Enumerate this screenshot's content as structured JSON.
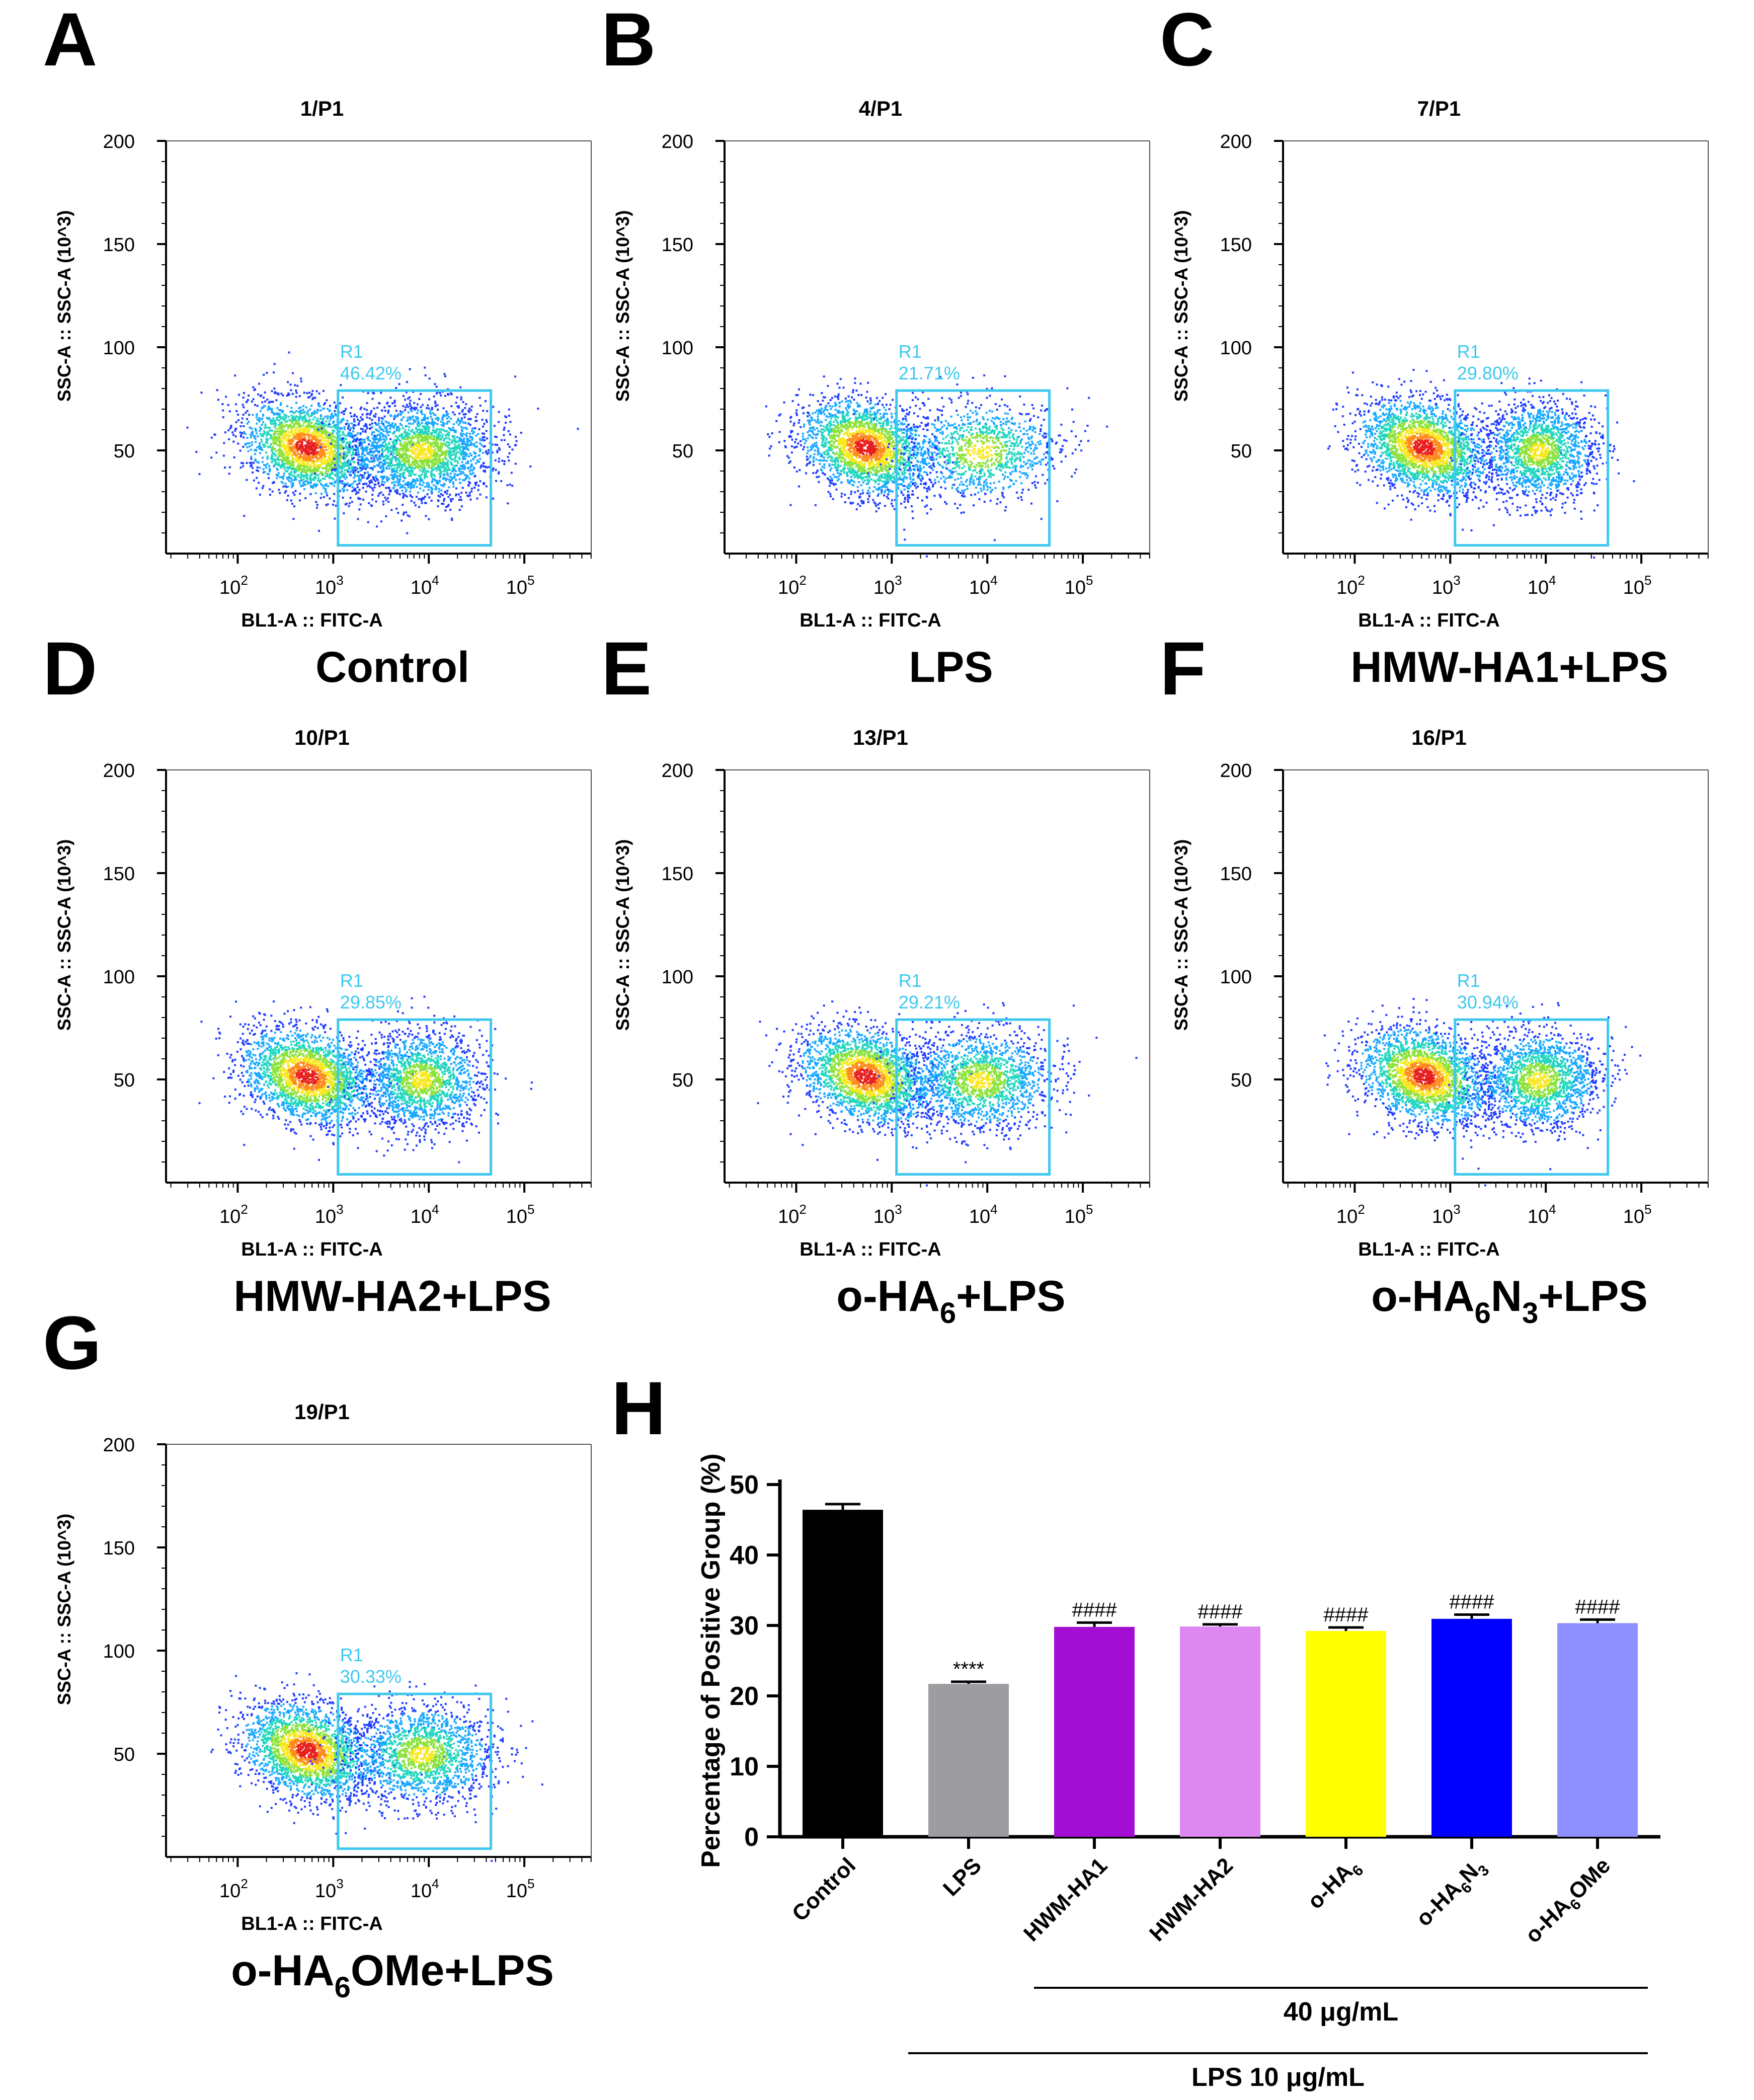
{
  "figure": {
    "panels": [
      {
        "letter": "A",
        "title": "1/P1",
        "group": "Control",
        "gate": "R1",
        "percent": "46.42%",
        "right_rel": 0.55,
        "right_spread": 0.95
      },
      {
        "letter": "B",
        "title": "4/P1",
        "group": "LPS",
        "gate": "R1",
        "percent": "21.71%",
        "right_rel": 0.28,
        "right_spread": 1.0
      },
      {
        "letter": "C",
        "title": "7/P1",
        "group": "HMW-HA1+LPS",
        "gate": "R1",
        "percent": "29.80%",
        "right_rel": 0.42,
        "right_spread": 0.75
      },
      {
        "letter": "D",
        "title": "10/P1",
        "group": "HMW-HA2+LPS",
        "gate": "R1",
        "percent": "29.85%",
        "right_rel": 0.42,
        "right_spread": 0.8
      },
      {
        "letter": "E",
        "title": "13/P1",
        "group": "o-HA6+LPS",
        "group_parts": [
          "o-HA",
          "6",
          "+LPS"
        ],
        "gate": "R1",
        "percent": "29.21%",
        "right_rel": 0.42,
        "right_spread": 0.95
      },
      {
        "letter": "F",
        "title": "16/P1",
        "group": "o-HA6N3+LPS",
        "group_parts": [
          "o-HA",
          "6",
          "N",
          "3",
          "+LPS"
        ],
        "gate": "R1",
        "percent": "30.94%",
        "right_rel": 0.44,
        "right_spread": 0.8
      },
      {
        "letter": "G",
        "title": "19/P1",
        "group": "o-HA6OMe+LPS",
        "group_parts": [
          "o-HA",
          "6",
          "OMe+LPS"
        ],
        "gate": "R1",
        "percent": "30.33%",
        "right_rel": 0.43,
        "right_spread": 0.95
      }
    ],
    "flow_axes": {
      "x_label": "BL1-A :: FITC-A",
      "y_label": "SSC-A :: SSC-A (10^3)",
      "y_ticks": [
        50,
        100,
        150,
        200
      ],
      "x_ticks": [
        "2",
        "3",
        "4",
        "5"
      ],
      "x_tick_base": "10"
    },
    "colors": {
      "gate": "#3ec8ef",
      "density": [
        "#1e3cff",
        "#18a8ff",
        "#22d6c0",
        "#8ae23a",
        "#f7e81e",
        "#ff8a1e",
        "#e81e1e"
      ]
    }
  },
  "chart_data": {
    "type": "bar",
    "letter": "H",
    "ylabel": "Percentage of Positive Group (%)",
    "ylim": [
      0,
      50
    ],
    "yticks": [
      0,
      10,
      20,
      30,
      40,
      50
    ],
    "categories": [
      "Control",
      "LPS",
      "HWM-HA1",
      "HWM-HA2",
      "o-HA6",
      "o-HA6N3",
      "o-HA6OMe"
    ],
    "category_parts": [
      [
        "Control"
      ],
      [
        "LPS"
      ],
      [
        "HWM-HA1"
      ],
      [
        "HWM-HA2"
      ],
      [
        "o-HA",
        "6"
      ],
      [
        "o-HA",
        "6",
        "N",
        "3"
      ],
      [
        "o-HA",
        "6",
        "OMe"
      ]
    ],
    "values": [
      46.42,
      21.71,
      29.8,
      29.85,
      29.21,
      30.94,
      30.33
    ],
    "errors": [
      0.8,
      0.3,
      0.6,
      0.3,
      0.5,
      0.6,
      0.5
    ],
    "colors": [
      "#000000",
      "#9c9ca1",
      "#a30fd2",
      "#dd88f0",
      "#ffff00",
      "#0000ff",
      "#8f8fff"
    ],
    "annotations": [
      "",
      "****",
      "####",
      "####",
      "####",
      "####",
      "####"
    ],
    "brackets": [
      {
        "label": "40 μg/mL",
        "from": 2,
        "to": 6
      },
      {
        "label": "LPS 10 μg/mL",
        "from": 1,
        "to": 6
      }
    ]
  }
}
